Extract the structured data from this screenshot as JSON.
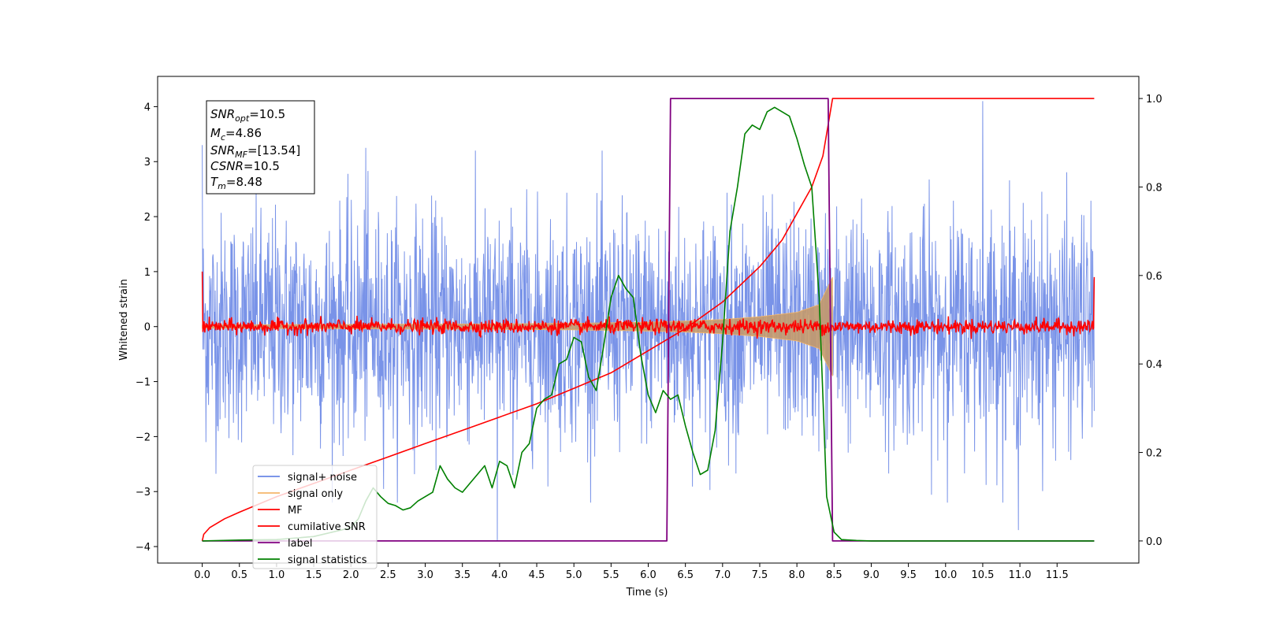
{
  "chart_data": {
    "type": "line",
    "xlabel": "Time (s)",
    "ylabel": "Whitened strain",
    "xlim": [
      -0.6,
      12.6
    ],
    "ylim_left": [
      -4.3,
      4.55
    ],
    "ylim_right": [
      -0.05,
      1.05
    ],
    "x_ticks": [
      "0.0",
      "0.5",
      "1.0",
      "1.5",
      "2.0",
      "2.5",
      "3.0",
      "3.5",
      "4.0",
      "4.5",
      "5.0",
      "5.5",
      "6.0",
      "6.5",
      "7.0",
      "7.5",
      "8.0",
      "8.5",
      "9.0",
      "9.5",
      "10.0",
      "10.5",
      "11.0",
      "11.5"
    ],
    "y_ticks_left": [
      "4",
      "3",
      "2",
      "1",
      "0",
      "−1",
      "−2",
      "−3",
      "−4"
    ],
    "y_ticks_right": [
      "1.0",
      "0.8",
      "0.6",
      "0.4",
      "0.2",
      "0.0"
    ],
    "colors": {
      "signal_noise": "#6a87e6",
      "signal_only": "#f5b66b",
      "mf": "#ff0000",
      "cumulative_snr": "#ff0000",
      "label": "#800080",
      "signal_statistics": "#008000"
    },
    "info_box": {
      "snr_opt": {
        "base": "SNR",
        "sub": "opt",
        "value": "=10.5"
      },
      "mc": {
        "base": "M",
        "sub": "c",
        "value": "=4.86"
      },
      "snr_mf": {
        "base": "SNR",
        "sub": "MF",
        "value": "=[13.54]"
      },
      "csnr": {
        "base": "CSNR",
        "sub": "",
        "value": "=10.5"
      },
      "tm": {
        "base": "T",
        "sub": "m",
        "value": "=8.48"
      }
    },
    "legend": [
      "signal+ noise",
      "signal only",
      "MF",
      "cumilative SNR",
      "label",
      "signal statistics"
    ],
    "series": [
      {
        "name": "signal+ noise",
        "axis": "left",
        "description_values": {
          "x_start": 0.0,
          "x_end": 12.0,
          "typical_amplitude": 1.2,
          "max_spikes": [
            [
              0.0,
              3.3
            ],
            [
              2.2,
              3.25
            ],
            [
              10.5,
              4.1
            ],
            [
              3.97,
              -3.9
            ],
            [
              10.98,
              -3.7
            ]
          ]
        }
      },
      {
        "name": "signal only",
        "axis": "left",
        "envelope": {
          "x": [
            0.0,
            2.0,
            4.0,
            5.0,
            6.0,
            6.5,
            7.0,
            7.5,
            8.0,
            8.3,
            8.48
          ],
          "amplitude": [
            0.03,
            0.04,
            0.05,
            0.06,
            0.08,
            0.1,
            0.13,
            0.18,
            0.26,
            0.4,
            0.9
          ]
        }
      },
      {
        "name": "MF",
        "axis": "left",
        "description_values": {
          "x_start": 0.0,
          "x_end": 12.0,
          "start_value": 1.0,
          "end_value": 0.9,
          "typical_amplitude": 0.12
        }
      },
      {
        "name": "cumilative SNR",
        "axis": "right",
        "x": [
          0.0,
          0.02,
          0.1,
          0.3,
          0.5,
          1.0,
          1.5,
          2.0,
          2.5,
          3.0,
          3.5,
          4.0,
          4.5,
          5.0,
          5.5,
          6.0,
          6.5,
          7.0,
          7.5,
          7.8,
          8.0,
          8.2,
          8.35,
          8.48,
          8.6,
          12.0
        ],
        "y": [
          0.0,
          0.015,
          0.03,
          0.05,
          0.065,
          0.1,
          0.13,
          0.16,
          0.19,
          0.22,
          0.25,
          0.28,
          0.31,
          0.345,
          0.38,
          0.43,
          0.48,
          0.54,
          0.62,
          0.68,
          0.74,
          0.8,
          0.87,
          1.0,
          1.0,
          1.0
        ]
      },
      {
        "name": "label",
        "axis": "right",
        "x": [
          0.0,
          6.25,
          6.3,
          8.42,
          8.48,
          12.0
        ],
        "y": [
          0.0,
          0.0,
          1.0,
          1.0,
          0.0,
          0.0
        ]
      },
      {
        "name": "signal statistics",
        "axis": "right",
        "x": [
          0.0,
          0.5,
          1.0,
          1.5,
          2.0,
          2.1,
          2.2,
          2.3,
          2.4,
          2.5,
          2.6,
          2.7,
          2.8,
          2.9,
          3.0,
          3.1,
          3.2,
          3.3,
          3.4,
          3.5,
          3.6,
          3.7,
          3.8,
          3.9,
          4.0,
          4.1,
          4.2,
          4.3,
          4.4,
          4.5,
          4.6,
          4.7,
          4.8,
          4.9,
          5.0,
          5.1,
          5.2,
          5.3,
          5.4,
          5.5,
          5.6,
          5.7,
          5.8,
          5.9,
          6.0,
          6.1,
          6.2,
          6.3,
          6.4,
          6.5,
          6.6,
          6.7,
          6.8,
          6.9,
          7.0,
          7.1,
          7.2,
          7.3,
          7.4,
          7.5,
          7.6,
          7.7,
          7.8,
          7.9,
          8.0,
          8.1,
          8.2,
          8.3,
          8.4,
          8.5,
          8.6,
          8.8,
          9.0,
          10.0,
          12.0
        ],
        "y": [
          0.0,
          0.002,
          0.003,
          0.01,
          0.03,
          0.05,
          0.09,
          0.12,
          0.1,
          0.085,
          0.08,
          0.07,
          0.075,
          0.09,
          0.1,
          0.11,
          0.17,
          0.14,
          0.12,
          0.11,
          0.13,
          0.15,
          0.17,
          0.12,
          0.18,
          0.17,
          0.12,
          0.2,
          0.22,
          0.3,
          0.32,
          0.33,
          0.4,
          0.41,
          0.46,
          0.45,
          0.37,
          0.34,
          0.44,
          0.55,
          0.6,
          0.57,
          0.55,
          0.42,
          0.33,
          0.29,
          0.34,
          0.32,
          0.33,
          0.26,
          0.2,
          0.15,
          0.16,
          0.25,
          0.45,
          0.7,
          0.8,
          0.92,
          0.94,
          0.93,
          0.97,
          0.98,
          0.97,
          0.96,
          0.91,
          0.85,
          0.8,
          0.55,
          0.1,
          0.02,
          0.003,
          0.001,
          0.0,
          0.0,
          0.0
        ]
      }
    ]
  }
}
